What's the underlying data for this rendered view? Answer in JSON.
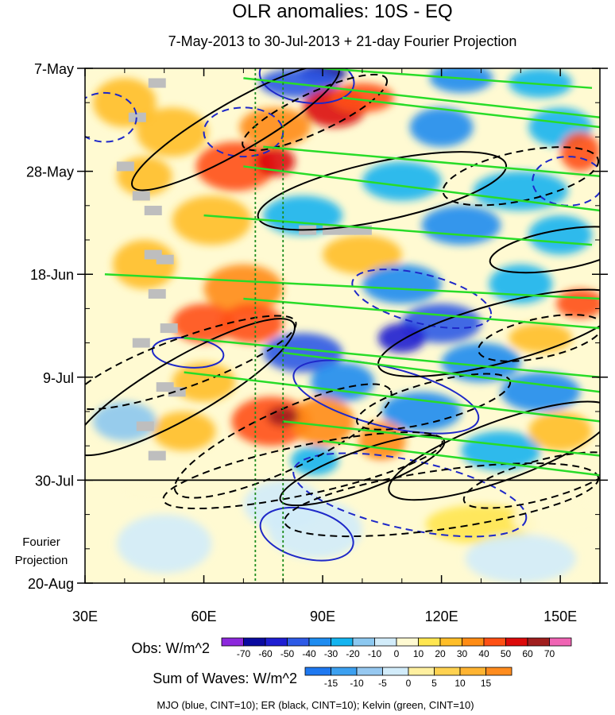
{
  "chart_data": {
    "type": "heatmap",
    "title": "OLR anomalies: 10S - EQ",
    "subtitle": "7-May-2013 to 30-Jul-2013 + 21-day Fourier Projection",
    "x_axis": {
      "range": [
        30,
        160
      ],
      "ticks": [
        30,
        60,
        90,
        120,
        150
      ],
      "tick_labels": [
        "30E",
        "60E",
        "90E",
        "120E",
        "150E"
      ]
    },
    "y_axis": {
      "range_days": [
        0,
        105
      ],
      "tick_days": [
        0,
        21,
        42,
        63,
        84,
        105
      ],
      "tick_labels": [
        "7-May",
        "28-May",
        "18-Jun",
        "9-Jul",
        "30-Jul",
        "20-Aug"
      ],
      "projection_label_line1": "Fourier",
      "projection_label_line2": "Projection"
    },
    "reference_lines": {
      "observation_end_day": 84,
      "dotted_longitudes": [
        73,
        80
      ]
    },
    "obs_colorbar": {
      "label": "Obs: W/m^2",
      "levels": [
        "-70",
        "-60",
        "-50",
        "-40",
        "-30",
        "-20",
        "-10",
        "0",
        "10",
        "20",
        "30",
        "40",
        "50",
        "60",
        "70"
      ],
      "colors": [
        "#8c28dc",
        "#0a0aa0",
        "#1e1ed2",
        "#2d5ae6",
        "#1e8cf0",
        "#14b4f0",
        "#8cc8f0",
        "#d2ecfa",
        "#fffad2",
        "#ffe650",
        "#ffbe28",
        "#ff8c14",
        "#ff5014",
        "#dc0a0a",
        "#a01e1e",
        "#f064b4"
      ]
    },
    "waves_colorbar": {
      "label": "Sum of Waves: W/m^2",
      "levels": [
        "-15",
        "-10",
        "-5",
        "0",
        "5",
        "10",
        "15"
      ],
      "colors": [
        "#1e78f0",
        "#3ca0f0",
        "#96c8f0",
        "#d2ecfa",
        "#fff0a0",
        "#ffd250",
        "#ffb432",
        "#ff8c1e"
      ]
    },
    "series": [
      {
        "name": "MJO",
        "color": "#1e28c8",
        "cint": 10
      },
      {
        "name": "ER",
        "color": "#000000",
        "cint": 10
      },
      {
        "name": "Kelvin",
        "color": "#28dc28",
        "cint": 10
      }
    ],
    "legend_text": "MJO (blue, CINT=10); ER (black, CINT=10); Kelvin (green, CINT=10)",
    "field_blobs": [
      {
        "lon": 90,
        "day": 1,
        "rl": 6,
        "rd": 2,
        "v": -70
      },
      {
        "lon": 84,
        "day": 3,
        "rl": 10,
        "rd": 3,
        "v": -45
      },
      {
        "lon": 125,
        "day": 2,
        "rl": 8,
        "rd": 3,
        "v": -40
      },
      {
        "lon": 145,
        "day": 3,
        "rl": 8,
        "rd": 3,
        "v": -30
      },
      {
        "lon": 93,
        "day": 8,
        "rl": 8,
        "rd": 4,
        "v": 50
      },
      {
        "lon": 100,
        "day": 6,
        "rl": 8,
        "rd": 3,
        "v": 40
      },
      {
        "lon": 78,
        "day": 12,
        "rl": 9,
        "rd": 4,
        "v": 30
      },
      {
        "lon": 40,
        "day": 7,
        "rl": 8,
        "rd": 5,
        "v": 25
      },
      {
        "lon": 52,
        "day": 13,
        "rl": 9,
        "rd": 5,
        "v": 25
      },
      {
        "lon": 120,
        "day": 12,
        "rl": 8,
        "rd": 4,
        "v": -40
      },
      {
        "lon": 150,
        "day": 12,
        "rl": 8,
        "rd": 4,
        "v": -30
      },
      {
        "lon": 68,
        "day": 20,
        "rl": 10,
        "rd": 5,
        "v": 40
      },
      {
        "lon": 78,
        "day": 19,
        "rl": 5,
        "rd": 3,
        "v": 55
      },
      {
        "lon": 45,
        "day": 22,
        "rl": 7,
        "rd": 4,
        "v": 20
      },
      {
        "lon": 155,
        "day": 17,
        "rl": 5,
        "rd": 4,
        "v": 40
      },
      {
        "lon": 110,
        "day": 23,
        "rl": 10,
        "rd": 4,
        "v": -30
      },
      {
        "lon": 140,
        "day": 25,
        "rl": 12,
        "rd": 4,
        "v": -30
      },
      {
        "lon": 62,
        "day": 31,
        "rl": 10,
        "rd": 5,
        "v": 25
      },
      {
        "lon": 85,
        "day": 30,
        "rl": 10,
        "rd": 4,
        "v": -25
      },
      {
        "lon": 125,
        "day": 32,
        "rl": 10,
        "rd": 4,
        "v": -40
      },
      {
        "lon": 150,
        "day": 34,
        "rl": 8,
        "rd": 4,
        "v": -30
      },
      {
        "lon": 100,
        "day": 38,
        "rl": 10,
        "rd": 4,
        "v": 20
      },
      {
        "lon": 45,
        "day": 40,
        "rl": 8,
        "rd": 5,
        "v": 20
      },
      {
        "lon": 70,
        "day": 45,
        "rl": 10,
        "rd": 5,
        "v": 30
      },
      {
        "lon": 110,
        "day": 44,
        "rl": 10,
        "rd": 4,
        "v": -40
      },
      {
        "lon": 140,
        "day": 44,
        "rl": 8,
        "rd": 4,
        "v": -30
      },
      {
        "lon": 155,
        "day": 48,
        "rl": 6,
        "rd": 3,
        "v": 40
      },
      {
        "lon": 60,
        "day": 52,
        "rl": 8,
        "rd": 4,
        "v": 45
      },
      {
        "lon": 72,
        "day": 52,
        "rl": 8,
        "rd": 4,
        "v": 40
      },
      {
        "lon": 120,
        "day": 52,
        "rl": 10,
        "rd": 4,
        "v": -50
      },
      {
        "lon": 110,
        "day": 55,
        "rl": 6,
        "rd": 3,
        "v": -60
      },
      {
        "lon": 145,
        "day": 55,
        "rl": 8,
        "rd": 3,
        "v": 25
      },
      {
        "lon": 85,
        "day": 58,
        "rl": 10,
        "rd": 4,
        "v": -50
      },
      {
        "lon": 130,
        "day": 60,
        "rl": 10,
        "rd": 4,
        "v": -40
      },
      {
        "lon": 95,
        "day": 64,
        "rl": 8,
        "rd": 4,
        "v": -40
      },
      {
        "lon": 60,
        "day": 64,
        "rl": 8,
        "rd": 4,
        "v": 20
      },
      {
        "lon": 145,
        "day": 66,
        "rl": 10,
        "rd": 4,
        "v": -40
      },
      {
        "lon": 115,
        "day": 70,
        "rl": 10,
        "rd": 4,
        "v": -40
      },
      {
        "lon": 77,
        "day": 72,
        "rl": 10,
        "rd": 5,
        "v": 40
      },
      {
        "lon": 90,
        "day": 72,
        "rl": 8,
        "rd": 5,
        "v": 30
      },
      {
        "lon": 80,
        "day": 71,
        "rl": 4,
        "rd": 2,
        "v": 60
      },
      {
        "lon": 55,
        "day": 74,
        "rl": 8,
        "rd": 4,
        "v": 20
      },
      {
        "lon": 40,
        "day": 72,
        "rl": 8,
        "rd": 4,
        "v": -15
      },
      {
        "lon": 105,
        "day": 76,
        "rl": 6,
        "rd": 4,
        "v": 30
      },
      {
        "lon": 135,
        "day": 78,
        "rl": 10,
        "rd": 4,
        "v": -30
      },
      {
        "lon": 150,
        "day": 74,
        "rl": 8,
        "rd": 4,
        "v": 20
      },
      {
        "lon": 88,
        "day": 80,
        "rl": 6,
        "rd": 3,
        "v": -30
      },
      {
        "lon": 150,
        "day": 86,
        "rl": 10,
        "rd": 3,
        "v": 8
      },
      {
        "lon": 108,
        "day": 84,
        "rl": 8,
        "rd": 3,
        "v": 8
      },
      {
        "lon": 48,
        "day": 86,
        "rl": 10,
        "rd": 3,
        "v": 5
      },
      {
        "lon": 80,
        "day": 89,
        "rl": 10,
        "rd": 5,
        "v": -7
      },
      {
        "lon": 88,
        "day": 94,
        "rl": 12,
        "rd": 6,
        "v": -10
      },
      {
        "lon": 50,
        "day": 97,
        "rl": 12,
        "rd": 6,
        "v": -6
      },
      {
        "lon": 130,
        "day": 93,
        "rl": 14,
        "rd": 4,
        "v": 10
      },
      {
        "lon": 150,
        "day": 92,
        "rl": 12,
        "rd": 4,
        "v": 7
      },
      {
        "lon": 140,
        "day": 100,
        "rl": 14,
        "rd": 5,
        "v": -3
      }
    ],
    "kelvin_lines": [
      [
        [
          90,
          0
        ],
        [
          158,
          4
        ]
      ],
      [
        [
          70,
          2
        ],
        [
          160,
          10
        ]
      ],
      [
        [
          95,
          6
        ],
        [
          160,
          12
        ]
      ],
      [
        [
          75,
          16
        ],
        [
          160,
          22
        ]
      ],
      [
        [
          70,
          20
        ],
        [
          160,
          29
        ]
      ],
      [
        [
          60,
          30
        ],
        [
          158,
          36
        ]
      ],
      [
        [
          35,
          42
        ],
        [
          160,
          47
        ]
      ],
      [
        [
          70,
          47
        ],
        [
          160,
          53
        ]
      ],
      [
        [
          55,
          55
        ],
        [
          160,
          63
        ]
      ],
      [
        [
          80,
          58
        ],
        [
          160,
          66
        ]
      ],
      [
        [
          55,
          62
        ],
        [
          160,
          72
        ]
      ],
      [
        [
          80,
          72
        ],
        [
          160,
          79
        ]
      ],
      [
        [
          90,
          76
        ],
        [
          160,
          83
        ]
      ]
    ],
    "mjo_contours": [
      {
        "lon": 86,
        "day": 2,
        "rl": 12,
        "rd": 5,
        "rot": 8,
        "dash": false
      },
      {
        "lon": 35,
        "day": 10,
        "rl": 8,
        "rd": 5,
        "rot": 0,
        "dash": true
      },
      {
        "lon": 70,
        "day": 13,
        "rl": 10,
        "rd": 5,
        "rot": 0,
        "dash": true
      },
      {
        "lon": 152,
        "day": 23,
        "rl": 9,
        "rd": 5,
        "rot": 0,
        "dash": true
      },
      {
        "lon": 115,
        "day": 47,
        "rl": 18,
        "rd": 5,
        "rot": 14,
        "dash": true
      },
      {
        "lon": 56,
        "day": 58,
        "rl": 9,
        "rd": 3,
        "rot": 5,
        "dash": false
      },
      {
        "lon": 106,
        "day": 67,
        "rl": 24,
        "rd": 6,
        "rot": 14,
        "dash": false
      },
      {
        "lon": 112,
        "day": 87,
        "rl": 30,
        "rd": 7,
        "rot": 12,
        "dash": true
      },
      {
        "lon": 86,
        "day": 95,
        "rl": 12,
        "rd": 5,
        "rot": 14,
        "dash": false
      }
    ],
    "er_contours": [
      {
        "lon": 68,
        "day": 12,
        "rl": 30,
        "rd": 5,
        "rot": -30,
        "dash": false
      },
      {
        "lon": 88,
        "day": 9,
        "rl": 20,
        "rd": 4,
        "rot": -25,
        "dash": true
      },
      {
        "lon": 105,
        "day": 25,
        "rl": 32,
        "rd": 6,
        "rot": -12,
        "dash": false
      },
      {
        "lon": 140,
        "day": 22,
        "rl": 20,
        "rd": 5,
        "rot": -12,
        "dash": true
      },
      {
        "lon": 150,
        "day": 37,
        "rl": 18,
        "rd": 4,
        "rot": -10,
        "dash": false
      },
      {
        "lon": 135,
        "day": 54,
        "rl": 32,
        "rd": 6,
        "rot": -15,
        "dash": false
      },
      {
        "lon": 145,
        "day": 55,
        "rl": 16,
        "rd": 4,
        "rot": -12,
        "dash": true
      },
      {
        "lon": 55,
        "day": 65,
        "rl": 32,
        "rd": 6,
        "rot": -30,
        "dash": false
      },
      {
        "lon": 55,
        "day": 60,
        "rl": 30,
        "rd": 5,
        "rot": -20,
        "dash": true
      },
      {
        "lon": 80,
        "day": 76,
        "rl": 30,
        "rd": 6,
        "rot": -25,
        "dash": true
      },
      {
        "lon": 118,
        "day": 68,
        "rl": 20,
        "rd": 4,
        "rot": -15,
        "dash": true
      },
      {
        "lon": 135,
        "day": 78,
        "rl": 30,
        "rd": 6,
        "rot": -20,
        "dash": false
      },
      {
        "lon": 145,
        "day": 84,
        "rl": 20,
        "rd": 4,
        "rot": -15,
        "dash": true
      },
      {
        "lon": 100,
        "day": 82,
        "rl": 22,
        "rd": 4,
        "rot": -20,
        "dash": false
      },
      {
        "lon": 85,
        "day": 82,
        "rl": 36,
        "rd": 5,
        "rot": -12,
        "dash": true
      },
      {
        "lon": 120,
        "day": 88,
        "rl": 40,
        "rd": 6,
        "rot": -8,
        "dash": true
      }
    ],
    "grey_cells": [
      [
        48,
        3
      ],
      [
        43,
        10
      ],
      [
        40,
        20
      ],
      [
        44,
        26
      ],
      [
        47,
        29
      ],
      [
        47,
        38
      ],
      [
        50,
        39
      ],
      [
        48,
        46
      ],
      [
        51,
        53
      ],
      [
        44,
        56
      ],
      [
        50,
        65
      ],
      [
        45,
        73
      ],
      [
        48,
        79
      ],
      [
        53,
        66
      ],
      [
        86,
        33
      ],
      [
        92,
        33
      ],
      [
        96,
        33
      ],
      [
        100,
        33
      ]
    ]
  }
}
